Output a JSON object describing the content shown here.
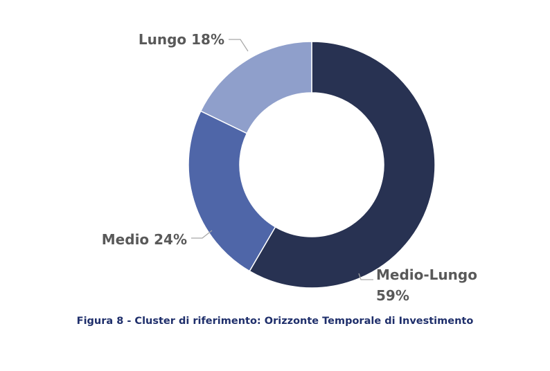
{
  "chart_data": {
    "type": "pie",
    "variant": "donut",
    "categories": [
      "Medio-Lungo",
      "Medio",
      "Lungo"
    ],
    "values": [
      59,
      24,
      18
    ],
    "unit": "%",
    "labels": [
      {
        "lines": [
          "Medio-Lungo",
          "59%"
        ]
      },
      {
        "lines": [
          "Medio 24%"
        ]
      },
      {
        "lines": [
          "Lungo 18%"
        ]
      }
    ],
    "colors": [
      "#283252",
      "#4f66a8",
      "#8f9fcb"
    ],
    "legend": "none",
    "title": ""
  },
  "caption": "Figura 8 - Cluster di riferimento: Orizzonte Temporale di Investimento"
}
